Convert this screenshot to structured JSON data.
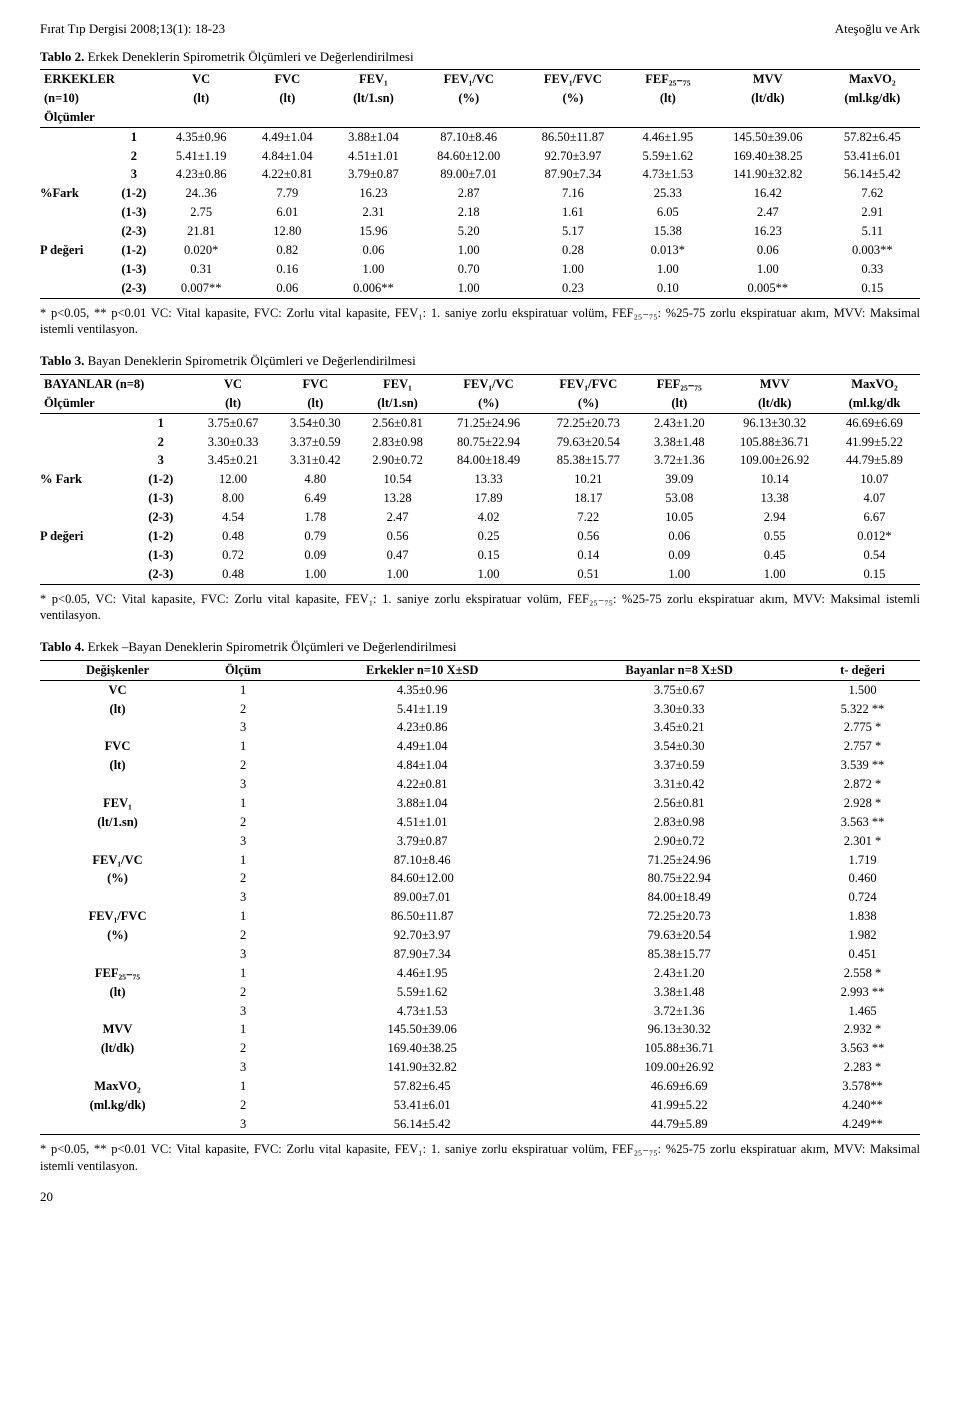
{
  "header": {
    "left": "Fırat Tıp Dergisi 2008;13(1): 18-23",
    "right": "Ateşoğlu ve Ark"
  },
  "table2": {
    "caption_bold": "Tablo 2.",
    "caption_rest": " Erkek Deneklerin Spirometrik Ölçümleri ve Değerlendirilmesi",
    "head1": [
      "ERKEKLER",
      "VC",
      "FVC",
      "FEV₁",
      "FEV₁/VC",
      "FEV₁/FVC",
      "FEF₂₅₋₇₅",
      "MVV",
      "MaxVO₂"
    ],
    "head2": [
      "(n=10)",
      "(lt)",
      "(lt)",
      "(lt/1.sn)",
      "(%)",
      "(%)",
      "(lt)",
      "(lt/dk)",
      "(ml.kg/dk)"
    ],
    "head3": "Ölçümler",
    "rows_main": [
      [
        "",
        "1",
        "4.35±0.96",
        "4.49±1.04",
        "3.88±1.04",
        "87.10±8.46",
        "86.50±11.87",
        "4.46±1.95",
        "145.50±39.06",
        "57.82±6.45"
      ],
      [
        "",
        "2",
        "5.41±1.19",
        "4.84±1.04",
        "4.51±1.01",
        "84.60±12.00",
        "92.70±3.97",
        "5.59±1.62",
        "169.40±38.25",
        "53.41±6.01"
      ],
      [
        "",
        "3",
        "4.23±0.86",
        "4.22±0.81",
        "3.79±0.87",
        "89.00±7.01",
        "87.90±7.34",
        "4.73±1.53",
        "141.90±32.82",
        "56.14±5.42"
      ]
    ],
    "rows_fark": [
      [
        "%Fark",
        "(1-2)",
        "24..36",
        "7.79",
        "16.23",
        "2.87",
        "7.16",
        "25.33",
        "16.42",
        "7.62"
      ],
      [
        "",
        "(1-3)",
        "2.75",
        "6.01",
        "2.31",
        "2.18",
        "1.61",
        "6.05",
        "2.47",
        "2.91"
      ],
      [
        "",
        "(2-3)",
        "21.81",
        "12.80",
        "15.96",
        "5.20",
        "5.17",
        "15.38",
        "16.23",
        "5.11"
      ]
    ],
    "rows_p": [
      [
        "P değeri",
        "(1-2)",
        "0.020*",
        "0.82",
        "0.06",
        "1.00",
        "0.28",
        "0.013*",
        "0.06",
        "0.003**"
      ],
      [
        "",
        "(1-3)",
        "0.31",
        "0.16",
        "1.00",
        "0.70",
        "1.00",
        "1.00",
        "1.00",
        "0.33"
      ],
      [
        "",
        "(2-3)",
        "0.007**",
        "0.06",
        "0.006**",
        "1.00",
        "0.23",
        "0.10",
        "0.005**",
        "0.15"
      ]
    ],
    "note": "* p<0.05, ** p<0.01 VC: Vital kapasite, FVC: Zorlu vital kapasite, FEV₁: 1. saniye zorlu ekspiratuar volüm, FEF₂₅₋₇₅: %25-75 zorlu ekspiratuar akım, MVV: Maksimal istemli ventilasyon."
  },
  "table3": {
    "caption_bold": "Tablo 3.",
    "caption_rest": " Bayan Deneklerin Spirometrik Ölçümleri ve Değerlendirilmesi",
    "head1": [
      "BAYANLAR (n=8)",
      "VC",
      "FVC",
      "FEV₁",
      "FEV₁/VC",
      "FEV₁/FVC",
      "FEF₂₅₋₇₅",
      "MVV",
      "MaxVO₂"
    ],
    "head2": [
      "Ölçümler",
      "(lt)",
      "(lt)",
      "(lt/1.sn)",
      "(%)",
      "(%)",
      "(lt)",
      "(lt/dk)",
      "(ml.kg/dk"
    ],
    "rows_main": [
      [
        "",
        "1",
        "3.75±0.67",
        "3.54±0.30",
        "2.56±0.81",
        "71.25±24.96",
        "72.25±20.73",
        "2.43±1.20",
        "96.13±30.32",
        "46.69±6.69"
      ],
      [
        "",
        "2",
        "3.30±0.33",
        "3.37±0.59",
        "2.83±0.98",
        "80.75±22.94",
        "79.63±20.54",
        "3.38±1.48",
        "105.88±36.71",
        "41.99±5.22"
      ],
      [
        "",
        "3",
        "3.45±0.21",
        "3.31±0.42",
        "2.90±0.72",
        "84.00±18.49",
        "85.38±15.77",
        "3.72±1.36",
        "109.00±26.92",
        "44.79±5.89"
      ]
    ],
    "rows_fark": [
      [
        "% Fark",
        "(1-2)",
        "12.00",
        "4.80",
        "10.54",
        "13.33",
        "10.21",
        "39.09",
        "10.14",
        "10.07"
      ],
      [
        "",
        "(1-3)",
        "8.00",
        "6.49",
        "13.28",
        "17.89",
        "18.17",
        "53.08",
        "13.38",
        "4.07"
      ],
      [
        "",
        "(2-3)",
        "4.54",
        "1.78",
        "2.47",
        "4.02",
        "7.22",
        "10.05",
        "2.94",
        "6.67"
      ]
    ],
    "rows_p": [
      [
        "P değeri",
        "(1-2)",
        "0.48",
        "0.79",
        "0.56",
        "0.25",
        "0.56",
        "0.06",
        "0.55",
        "0.012*"
      ],
      [
        "",
        "(1-3)",
        "0.72",
        "0.09",
        "0.47",
        "0.15",
        "0.14",
        "0.09",
        "0.45",
        "0.54"
      ],
      [
        "",
        "(2-3)",
        "0.48",
        "1.00",
        "1.00",
        "1.00",
        "0.51",
        "1.00",
        "1.00",
        "0.15"
      ]
    ],
    "note": "* p<0.05, VC: Vital kapasite, FVC: Zorlu vital kapasite, FEV₁: 1. saniye zorlu ekspiratuar volüm, FEF₂₅₋₇₅: %25-75 zorlu ekspiratuar akım, MVV: Maksimal istemli ventilasyon."
  },
  "table4": {
    "caption_bold": "Tablo 4.",
    "caption_rest": " Erkek –Bayan Deneklerin Spirometrik Ölçümleri ve Değerlendirilmesi",
    "head": [
      "Değişkenler",
      "Ölçüm",
      "Erkekler n=10 X±SD",
      "Bayanlar n=8 X±SD",
      "t- değeri"
    ],
    "groups": [
      {
        "var": "VC",
        "unit": "(lt)",
        "rows": [
          [
            "1",
            "4.35±0.96",
            "3.75±0.67",
            "1.500"
          ],
          [
            "2",
            "5.41±1.19",
            "3.30±0.33",
            "5.322 **"
          ],
          [
            "3",
            "4.23±0.86",
            "3.45±0.21",
            "2.775 *"
          ]
        ]
      },
      {
        "var": "FVC",
        "unit": "(lt)",
        "rows": [
          [
            "1",
            "4.49±1.04",
            "3.54±0.30",
            "2.757 *"
          ],
          [
            "2",
            "4.84±1.04",
            "3.37±0.59",
            "3.539 **"
          ],
          [
            "3",
            "4.22±0.81",
            "3.31±0.42",
            "2.872 *"
          ]
        ]
      },
      {
        "var": "FEV₁",
        "unit": "(lt/1.sn)",
        "rows": [
          [
            "1",
            "3.88±1.04",
            "2.56±0.81",
            "2.928 *"
          ],
          [
            "2",
            "4.51±1.01",
            "2.83±0.98",
            "3.563 **"
          ],
          [
            "3",
            "3.79±0.87",
            "2.90±0.72",
            "2.301 *"
          ]
        ]
      },
      {
        "var": "FEV₁/VC",
        "unit": "(%)",
        "rows": [
          [
            "1",
            "87.10±8.46",
            "71.25±24.96",
            "1.719"
          ],
          [
            "2",
            "84.60±12.00",
            "80.75±22.94",
            "0.460"
          ],
          [
            "3",
            "89.00±7.01",
            "84.00±18.49",
            "0.724"
          ]
        ]
      },
      {
        "var": "FEV₁/FVC",
        "unit": "(%)",
        "rows": [
          [
            "1",
            "86.50±11.87",
            "72.25±20.73",
            "1.838"
          ],
          [
            "2",
            "92.70±3.97",
            "79.63±20.54",
            "1.982"
          ],
          [
            "3",
            "87.90±7.34",
            "85.38±15.77",
            "0.451"
          ]
        ]
      },
      {
        "var": "FEF₂₅₋₇₅",
        "unit": "(lt)",
        "rows": [
          [
            "1",
            "4.46±1.95",
            "2.43±1.20",
            "2.558 *"
          ],
          [
            "2",
            "5.59±1.62",
            "3.38±1.48",
            "2.993 **"
          ],
          [
            "3",
            "4.73±1.53",
            "3.72±1.36",
            "1.465"
          ]
        ]
      },
      {
        "var": "MVV",
        "unit": "(lt/dk)",
        "rows": [
          [
            "1",
            "145.50±39.06",
            "96.13±30.32",
            "2.932 *"
          ],
          [
            "2",
            "169.40±38.25",
            "105.88±36.71",
            "3.563 **"
          ],
          [
            "3",
            "141.90±32.82",
            "109.00±26.92",
            "2.283 *"
          ]
        ]
      },
      {
        "var": "MaxVO₂",
        "unit": "(ml.kg/dk)",
        "rows": [
          [
            "1",
            "57.82±6.45",
            "46.69±6.69",
            "3.578**"
          ],
          [
            "2",
            "53.41±6.01",
            "41.99±5.22",
            "4.240**"
          ],
          [
            "3",
            "56.14±5.42",
            "44.79±5.89",
            "4.249**"
          ]
        ]
      }
    ],
    "note": "* p<0.05, ** p<0.01 VC: Vital kapasite, FVC: Zorlu vital kapasite, FEV₁: 1. saniye zorlu ekspiratuar volüm, FEF₂₅₋₇₅: %25-75 zorlu ekspiratuar akım, MVV: Maksimal istemli ventilasyon."
  },
  "page_number": "20"
}
